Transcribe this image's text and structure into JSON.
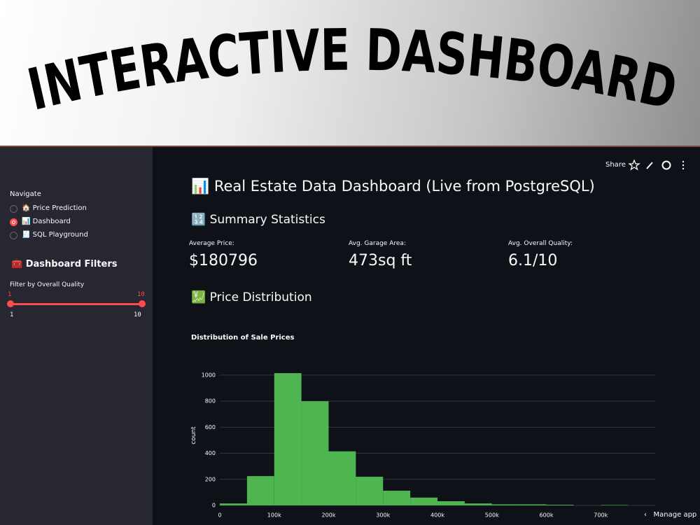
{
  "banner": {
    "title": "INTERACTIVE DASHBOARD"
  },
  "toolbar": {
    "share": "Share"
  },
  "sidebar": {
    "navigate": "Navigate",
    "options": [
      "🏠 Price Prediction",
      "📊 Dashboard",
      "🧾 SQL Playground"
    ],
    "selected": 1,
    "filters_header": "🧰 Dashboard Filters",
    "slider": {
      "label": "Filter by Overall Quality",
      "min": "1",
      "max": "10",
      "low": "1",
      "high": "10"
    }
  },
  "main": {
    "title": "📊 Real Estate Data Dashboard (Live from PostgreSQL)",
    "summary_header": "🔢 Summary Statistics",
    "metrics": [
      {
        "label": "Average Price:",
        "value": "$180796"
      },
      {
        "label": "Avg. Garage Area:",
        "value": "473sq ft"
      },
      {
        "label": "Avg. Overall Quality:",
        "value": "6.1/10"
      }
    ],
    "distribution_header": "💹 Price Distribution",
    "manage": "Manage app"
  },
  "chart_data": {
    "type": "histogram",
    "title": "Distribution of Sale Prices",
    "y_label": "count",
    "bins": [
      0,
      50000,
      100000,
      150000,
      200000,
      250000,
      300000,
      350000,
      400000,
      450000,
      500000,
      550000,
      600000,
      650000,
      700000,
      750000
    ],
    "values": [
      15,
      225,
      1015,
      800,
      415,
      220,
      113,
      60,
      32,
      15,
      8,
      8,
      5,
      0,
      3
    ],
    "color": "#4fb551",
    "xlim": [
      0,
      800000
    ],
    "ylim": [
      0,
      1080
    ],
    "xticks": [
      0,
      {
        "value": 100000,
        "label": "100k"
      },
      {
        "value": 200000,
        "label": "200k"
      },
      {
        "value": 300000,
        "label": "300k"
      },
      {
        "value": 400000,
        "label": "400k"
      },
      {
        "value": 500000,
        "label": "500k"
      },
      {
        "value": 600000,
        "label": "600k"
      },
      {
        "value": 700000,
        "label": "700k"
      }
    ],
    "yticks": [
      0,
      200,
      400,
      600,
      800,
      1000
    ],
    "grid": true
  }
}
